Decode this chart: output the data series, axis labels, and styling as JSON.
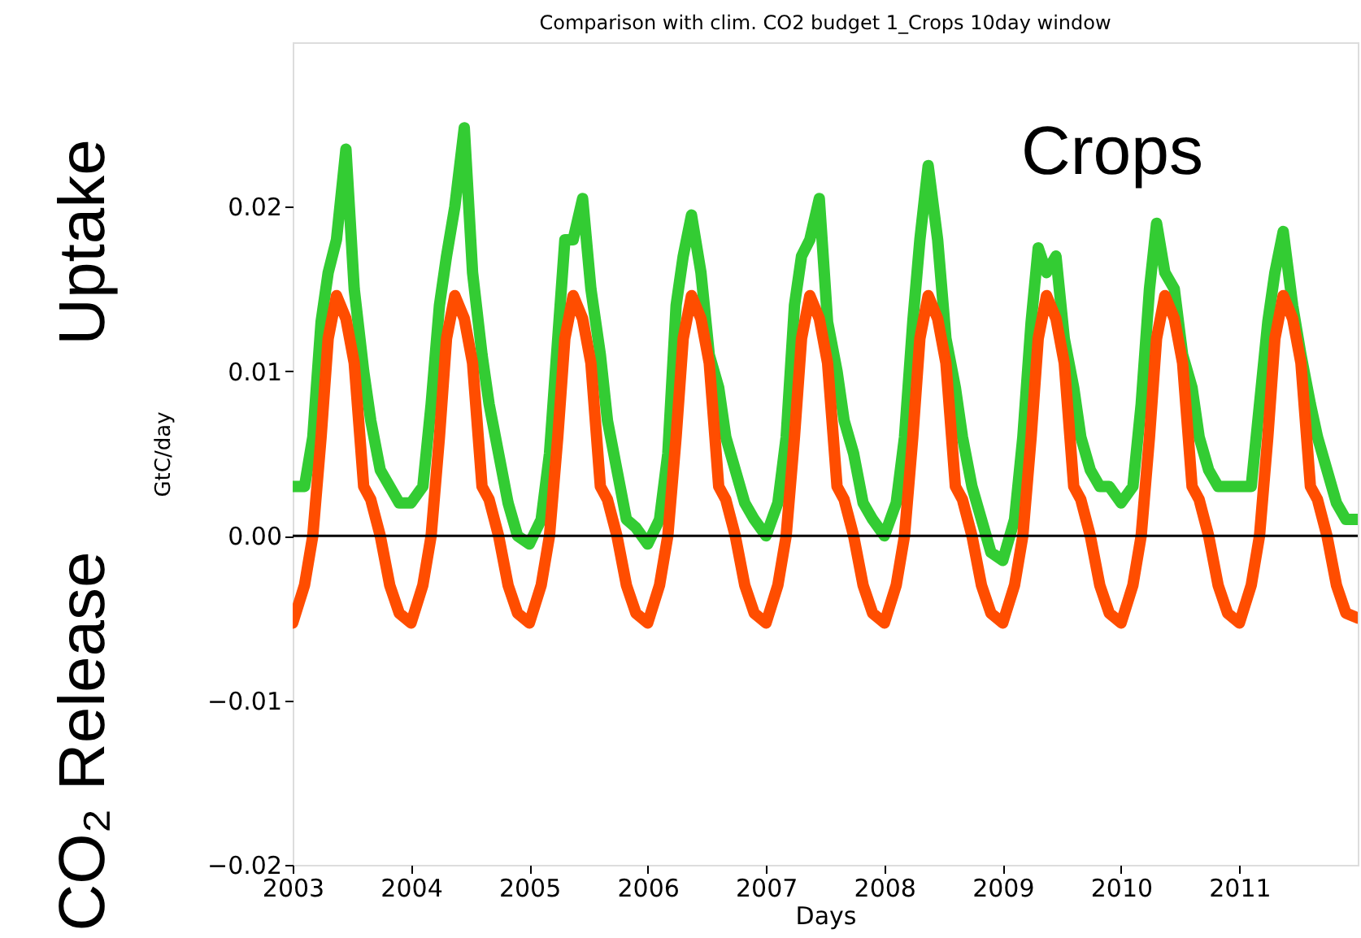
{
  "chart_data": {
    "type": "line",
    "title": "Comparison with clim. CO2 budget 1_Crops 10day window",
    "xlabel": "Days",
    "ylabel": "GtC/day",
    "annotations": [
      "Uptake",
      "CO₂ Release",
      "Crops"
    ],
    "x": [
      2003,
      2003.1,
      2003.17,
      2003.24,
      2003.3,
      2003.37,
      2003.45,
      2003.52,
      2003.6,
      2003.66,
      2003.74,
      2003.82,
      2003.9,
      2004,
      2004.1,
      2004.17,
      2004.24,
      2004.3,
      2004.37,
      2004.45,
      2004.52,
      2004.6,
      2004.66,
      2004.74,
      2004.82,
      2004.9,
      2005,
      2005.1,
      2005.17,
      2005.24,
      2005.3,
      2005.37,
      2005.45,
      2005.52,
      2005.6,
      2005.66,
      2005.74,
      2005.82,
      2005.9,
      2006,
      2006.1,
      2006.17,
      2006.24,
      2006.3,
      2006.37,
      2006.45,
      2006.52,
      2006.6,
      2006.66,
      2006.74,
      2006.82,
      2006.9,
      2007,
      2007.1,
      2007.17,
      2007.24,
      2007.3,
      2007.37,
      2007.45,
      2007.52,
      2007.6,
      2007.66,
      2007.74,
      2007.82,
      2007.9,
      2008,
      2008.1,
      2008.17,
      2008.24,
      2008.3,
      2008.37,
      2008.45,
      2008.52,
      2008.6,
      2008.66,
      2008.74,
      2008.82,
      2008.9,
      2009,
      2009.1,
      2009.17,
      2009.24,
      2009.3,
      2009.37,
      2009.45,
      2009.52,
      2009.6,
      2009.66,
      2009.74,
      2009.82,
      2009.9,
      2010,
      2010.1,
      2010.17,
      2010.24,
      2010.3,
      2010.37,
      2010.45,
      2010.52,
      2010.6,
      2010.66,
      2010.74,
      2010.82,
      2010.9,
      2011,
      2011.1,
      2011.17,
      2011.24,
      2011.3,
      2011.37,
      2011.45,
      2011.52,
      2011.6,
      2011.66,
      2011.74,
      2011.82,
      2011.9,
      2012
    ],
    "series": [
      {
        "color": "#33cc33",
        "values": [
          0.003,
          0.003,
          0.006,
          0.013,
          0.016,
          0.018,
          0.0235,
          0.015,
          0.01,
          0.007,
          0.004,
          0.003,
          0.002,
          0.002,
          0.003,
          0.008,
          0.014,
          0.017,
          0.02,
          0.0248,
          0.016,
          0.011,
          0.008,
          0.005,
          0.002,
          0.0,
          -0.0005,
          0.001,
          0.005,
          0.012,
          0.018,
          0.018,
          0.0205,
          0.015,
          0.011,
          0.007,
          0.004,
          0.001,
          0.0005,
          -0.0005,
          0.001,
          0.005,
          0.014,
          0.017,
          0.0195,
          0.016,
          0.011,
          0.009,
          0.006,
          0.004,
          0.002,
          0.001,
          0.0,
          0.002,
          0.006,
          0.014,
          0.017,
          0.018,
          0.0205,
          0.013,
          0.01,
          0.007,
          0.005,
          0.002,
          0.001,
          0.0,
          0.002,
          0.006,
          0.013,
          0.018,
          0.0225,
          0.018,
          0.012,
          0.009,
          0.006,
          0.003,
          0.001,
          -0.001,
          -0.0015,
          0.001,
          0.006,
          0.013,
          0.0175,
          0.016,
          0.017,
          0.012,
          0.009,
          0.006,
          0.004,
          0.003,
          0.003,
          0.002,
          0.003,
          0.008,
          0.015,
          0.019,
          0.016,
          0.015,
          0.011,
          0.009,
          0.006,
          0.004,
          0.003,
          0.003,
          0.003,
          0.003,
          0.008,
          0.013,
          0.016,
          0.0185,
          0.014,
          0.011,
          0.008,
          0.006,
          0.004,
          0.002,
          0.001,
          0.001
        ]
      },
      {
        "color": "#ff4d00",
        "values": [
          -0.0053,
          -0.003,
          0.0,
          0.006,
          0.012,
          0.0146,
          0.0132,
          0.0105,
          0.003,
          0.0022,
          0.0,
          -0.003,
          -0.0047,
          -0.0053,
          -0.003,
          0.0,
          0.006,
          0.012,
          0.0146,
          0.0132,
          0.0105,
          0.003,
          0.0022,
          0.0,
          -0.003,
          -0.0047,
          -0.0053,
          -0.003,
          0.0,
          0.006,
          0.012,
          0.0146,
          0.0132,
          0.0105,
          0.003,
          0.0022,
          0.0,
          -0.003,
          -0.0047,
          -0.0053,
          -0.003,
          0.0,
          0.006,
          0.012,
          0.0146,
          0.0132,
          0.0105,
          0.003,
          0.0022,
          0.0,
          -0.003,
          -0.0047,
          -0.0053,
          -0.003,
          0.0,
          0.006,
          0.012,
          0.0146,
          0.0132,
          0.0105,
          0.003,
          0.0022,
          0.0,
          -0.003,
          -0.0047,
          -0.0053,
          -0.003,
          0.0,
          0.006,
          0.012,
          0.0146,
          0.0132,
          0.0105,
          0.003,
          0.0022,
          0.0,
          -0.003,
          -0.0047,
          -0.0053,
          -0.003,
          0.0,
          0.006,
          0.012,
          0.0146,
          0.0132,
          0.0105,
          0.003,
          0.0022,
          0.0,
          -0.003,
          -0.0047,
          -0.0053,
          -0.003,
          0.0,
          0.006,
          0.012,
          0.0146,
          0.0132,
          0.0105,
          0.003,
          0.0022,
          0.0,
          -0.003,
          -0.0047,
          -0.0053,
          -0.003,
          0.0,
          0.006,
          0.012,
          0.0146,
          0.0132,
          0.0105,
          0.003,
          0.0022,
          0.0,
          -0.003,
          -0.0047,
          -0.005
        ]
      }
    ],
    "xlim": [
      2003,
      2012
    ],
    "xticks": [
      2003,
      2004,
      2005,
      2006,
      2007,
      2008,
      2009,
      2010,
      2011
    ],
    "ylim": [
      -0.02,
      0.03
    ],
    "yticks": [
      {
        "value": -0.02,
        "label": "−0.02"
      },
      {
        "value": -0.01,
        "label": "−0.01"
      },
      {
        "value": 0,
        "label": "0.00"
      },
      {
        "value": 0.01,
        "label": "0.01"
      },
      {
        "value": 0.02,
        "label": "0.02"
      }
    ],
    "ref_lines": [
      {
        "axis": "y",
        "value": 0,
        "color": "#000000"
      }
    ],
    "grid": false,
    "legend": false,
    "marker": "none",
    "line_style": "solid"
  }
}
